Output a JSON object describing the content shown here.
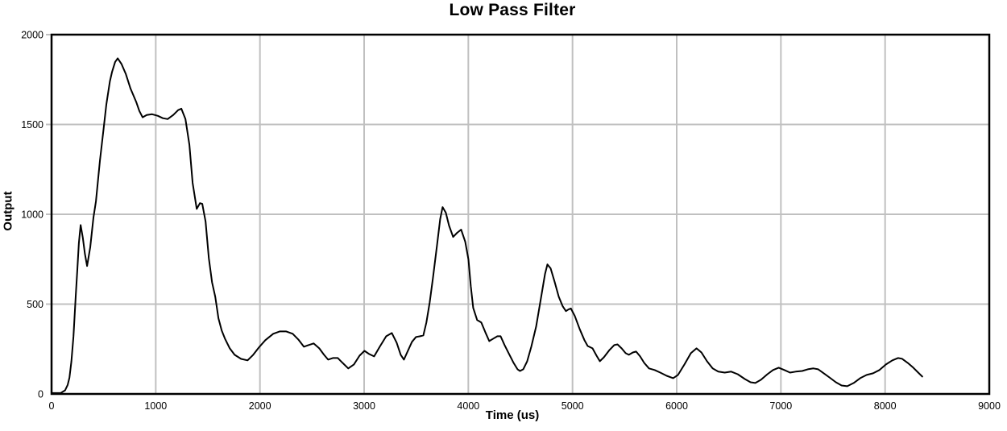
{
  "chart_data": {
    "type": "line",
    "title": "Low Pass Filter",
    "xlabel": "Time (us)",
    "ylabel": "Output",
    "xlim": [
      0,
      9000
    ],
    "ylim": [
      0,
      2000
    ],
    "x_ticks": [
      0,
      1000,
      2000,
      3000,
      4000,
      5000,
      6000,
      7000,
      8000,
      9000
    ],
    "y_ticks": [
      0,
      500,
      1000,
      1500,
      2000
    ],
    "grid": true,
    "legend": "none",
    "colors": {
      "line": "#000000",
      "grid": "#c0c0c0",
      "border": "#000000",
      "background": "#ffffff",
      "text": "#000000"
    },
    "series": [
      {
        "name": "Output",
        "points": [
          [
            0,
            5
          ],
          [
            90,
            6
          ],
          [
            130,
            20
          ],
          [
            155,
            50
          ],
          [
            172,
            90
          ],
          [
            190,
            180
          ],
          [
            210,
            320
          ],
          [
            232,
            545
          ],
          [
            248,
            700
          ],
          [
            262,
            840
          ],
          [
            279,
            940
          ],
          [
            300,
            870
          ],
          [
            320,
            780
          ],
          [
            341,
            712
          ],
          [
            371,
            816
          ],
          [
            402,
            982
          ],
          [
            426,
            1072
          ],
          [
            464,
            1297
          ],
          [
            500,
            1480
          ],
          [
            526,
            1611
          ],
          [
            560,
            1740
          ],
          [
            580,
            1791
          ],
          [
            610,
            1848
          ],
          [
            635,
            1868
          ],
          [
            672,
            1836
          ],
          [
            712,
            1782
          ],
          [
            758,
            1700
          ],
          [
            813,
            1625
          ],
          [
            843,
            1575
          ],
          [
            874,
            1540
          ],
          [
            913,
            1553
          ],
          [
            965,
            1557
          ],
          [
            1021,
            1548
          ],
          [
            1068,
            1535
          ],
          [
            1114,
            1530
          ],
          [
            1168,
            1553
          ],
          [
            1215,
            1580
          ],
          [
            1246,
            1588
          ],
          [
            1285,
            1530
          ],
          [
            1323,
            1387
          ],
          [
            1354,
            1175
          ],
          [
            1393,
            1030
          ],
          [
            1424,
            1062
          ],
          [
            1447,
            1058
          ],
          [
            1478,
            959
          ],
          [
            1509,
            757
          ],
          [
            1540,
            622
          ],
          [
            1571,
            541
          ],
          [
            1602,
            420
          ],
          [
            1633,
            353
          ],
          [
            1664,
            308
          ],
          [
            1710,
            254
          ],
          [
            1757,
            218
          ],
          [
            1819,
            195
          ],
          [
            1881,
            187
          ],
          [
            1935,
            218
          ],
          [
            1989,
            258
          ],
          [
            2051,
            299
          ],
          [
            2128,
            335
          ],
          [
            2190,
            348
          ],
          [
            2252,
            348
          ],
          [
            2314,
            335
          ],
          [
            2368,
            303
          ],
          [
            2422,
            263
          ],
          [
            2468,
            272
          ],
          [
            2515,
            281
          ],
          [
            2569,
            254
          ],
          [
            2615,
            218
          ],
          [
            2654,
            191
          ],
          [
            2700,
            200
          ],
          [
            2747,
            200
          ],
          [
            2793,
            173
          ],
          [
            2848,
            142
          ],
          [
            2902,
            164
          ],
          [
            2956,
            213
          ],
          [
            3003,
            240
          ],
          [
            3049,
            222
          ],
          [
            3096,
            209
          ],
          [
            3150,
            263
          ],
          [
            3212,
            321
          ],
          [
            3266,
            339
          ],
          [
            3312,
            285
          ],
          [
            3351,
            218
          ],
          [
            3382,
            191
          ],
          [
            3420,
            240
          ],
          [
            3459,
            290
          ],
          [
            3498,
            317
          ],
          [
            3537,
            321
          ],
          [
            3568,
            326
          ],
          [
            3598,
            398
          ],
          [
            3629,
            510
          ],
          [
            3660,
            645
          ],
          [
            3699,
            825
          ],
          [
            3730,
            973
          ],
          [
            3753,
            1040
          ],
          [
            3784,
            1009
          ],
          [
            3815,
            937
          ],
          [
            3854,
            874
          ],
          [
            3892,
            897
          ],
          [
            3931,
            915
          ],
          [
            3970,
            847
          ],
          [
            4001,
            748
          ],
          [
            4024,
            600
          ],
          [
            4047,
            479
          ],
          [
            4085,
            411
          ],
          [
            4124,
            398
          ],
          [
            4163,
            344
          ],
          [
            4201,
            294
          ],
          [
            4240,
            308
          ],
          [
            4279,
            321
          ],
          [
            4310,
            321
          ],
          [
            4348,
            272
          ],
          [
            4387,
            227
          ],
          [
            4434,
            173
          ],
          [
            4472,
            137
          ],
          [
            4496,
            128
          ],
          [
            4527,
            137
          ],
          [
            4565,
            182
          ],
          [
            4604,
            263
          ],
          [
            4651,
            375
          ],
          [
            4697,
            533
          ],
          [
            4736,
            667
          ],
          [
            4759,
            721
          ],
          [
            4790,
            699
          ],
          [
            4829,
            622
          ],
          [
            4868,
            541
          ],
          [
            4906,
            488
          ],
          [
            4937,
            461
          ],
          [
            4960,
            470
          ],
          [
            4984,
            476
          ],
          [
            5022,
            434
          ],
          [
            5068,
            362
          ],
          [
            5115,
            299
          ],
          [
            5146,
            267
          ],
          [
            5192,
            254
          ],
          [
            5231,
            213
          ],
          [
            5262,
            182
          ],
          [
            5301,
            204
          ],
          [
            5355,
            245
          ],
          [
            5401,
            272
          ],
          [
            5432,
            276
          ],
          [
            5471,
            254
          ],
          [
            5510,
            227
          ],
          [
            5541,
            218
          ],
          [
            5579,
            231
          ],
          [
            5610,
            236
          ],
          [
            5649,
            209
          ],
          [
            5688,
            173
          ],
          [
            5734,
            142
          ],
          [
            5788,
            133
          ],
          [
            5842,
            119
          ],
          [
            5904,
            101
          ],
          [
            5966,
            88
          ],
          [
            6012,
            106
          ],
          [
            6074,
            164
          ],
          [
            6136,
            227
          ],
          [
            6190,
            254
          ],
          [
            6237,
            231
          ],
          [
            6291,
            182
          ],
          [
            6345,
            142
          ],
          [
            6399,
            124
          ],
          [
            6461,
            119
          ],
          [
            6523,
            124
          ],
          [
            6585,
            110
          ],
          [
            6654,
            83
          ],
          [
            6709,
            65
          ],
          [
            6755,
            61
          ],
          [
            6809,
            79
          ],
          [
            6871,
            110
          ],
          [
            6925,
            133
          ],
          [
            6979,
            146
          ],
          [
            7033,
            133
          ],
          [
            7088,
            119
          ],
          [
            7142,
            124
          ],
          [
            7204,
            128
          ],
          [
            7258,
            137
          ],
          [
            7312,
            142
          ],
          [
            7358,
            137
          ],
          [
            7412,
            115
          ],
          [
            7466,
            92
          ],
          [
            7528,
            65
          ],
          [
            7583,
            47
          ],
          [
            7637,
            43
          ],
          [
            7699,
            61
          ],
          [
            7761,
            88
          ],
          [
            7823,
            106
          ],
          [
            7884,
            115
          ],
          [
            7946,
            133
          ],
          [
            8008,
            164
          ],
          [
            8070,
            187
          ],
          [
            8124,
            200
          ],
          [
            8163,
            196
          ],
          [
            8217,
            173
          ],
          [
            8271,
            146
          ],
          [
            8318,
            119
          ],
          [
            8357,
            97
          ]
        ]
      }
    ]
  }
}
